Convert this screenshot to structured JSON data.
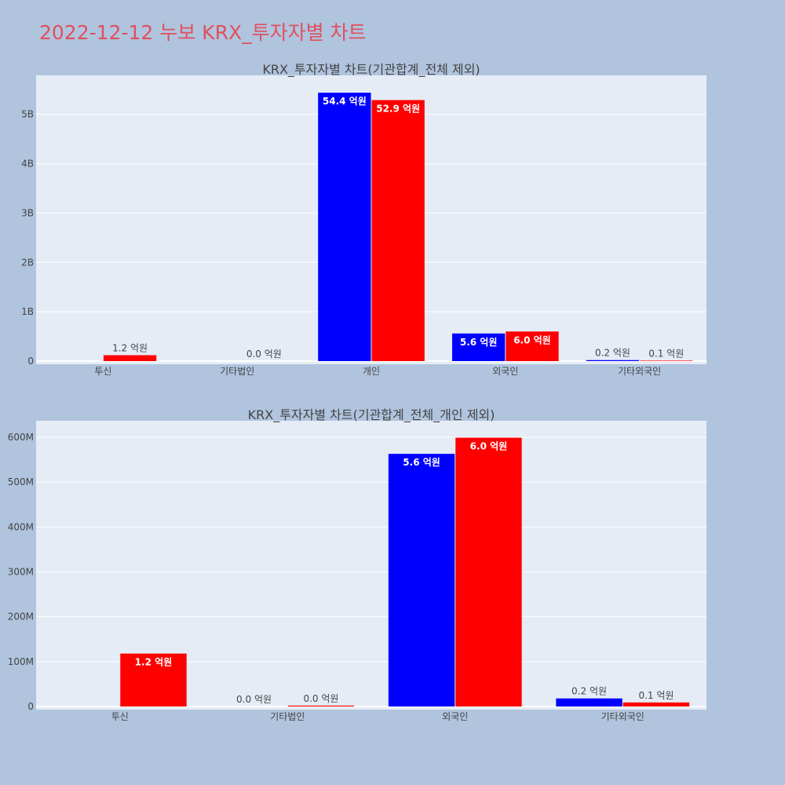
{
  "page": {
    "title": "2022-12-12 누보 KRX_투자자별 차트"
  },
  "colors": {
    "series_a": "#0000ff",
    "series_b": "#ff0000",
    "plot_bg": "#e5ecf6",
    "page_bg": "#b0c4de",
    "title": "#e0505e"
  },
  "chart_data": [
    {
      "type": "bar",
      "title": "KRX_투자자별 차트(기관합계_전체 제외)",
      "categories": [
        "투신",
        "기타법인",
        "개인",
        "외국인",
        "기타외국인"
      ],
      "series": [
        {
          "color": "#0000ff",
          "values": [
            0,
            0,
            5440000000,
            560000000,
            20000000
          ],
          "labels": [
            "",
            "",
            "54.4 억원",
            "5.6 억원",
            "0.2 억원"
          ]
        },
        {
          "color": "#ff0000",
          "values": [
            120000000,
            0,
            5290000000,
            600000000,
            10000000
          ],
          "labels": [
            "1.2 억원",
            "0.0 억원",
            "52.9 억원",
            "6.0 억원",
            "0.1 억원"
          ]
        }
      ],
      "ylim": [
        0,
        5600000000
      ],
      "yticks": [
        0,
        1000000000,
        2000000000,
        3000000000,
        4000000000,
        5000000000
      ],
      "ytick_labels": [
        "0",
        "1B",
        "2B",
        "3B",
        "4B",
        "5B"
      ],
      "grid": true
    },
    {
      "type": "bar",
      "title": "KRX_투자자별 차트(기관합계_전체_개인 제외)",
      "categories": [
        "투신",
        "기타법인",
        "외국인",
        "기타외국인"
      ],
      "series": [
        {
          "color": "#0000ff",
          "values": [
            0,
            0,
            563000000,
            18000000
          ],
          "labels": [
            "",
            "0.0 억원",
            "5.6 억원",
            "0.2 억원"
          ]
        },
        {
          "color": "#ff0000",
          "values": [
            118000000,
            2000000,
            599000000,
            9000000
          ],
          "labels": [
            "1.2 억원",
            "0.0 억원",
            "6.0 억원",
            "0.1 억원"
          ]
        }
      ],
      "ylim": [
        0,
        630000000
      ],
      "yticks": [
        0,
        100000000,
        200000000,
        300000000,
        400000000,
        500000000,
        600000000
      ],
      "ytick_labels": [
        "0",
        "100M",
        "200M",
        "300M",
        "400M",
        "500M",
        "600M"
      ],
      "grid": true
    }
  ]
}
